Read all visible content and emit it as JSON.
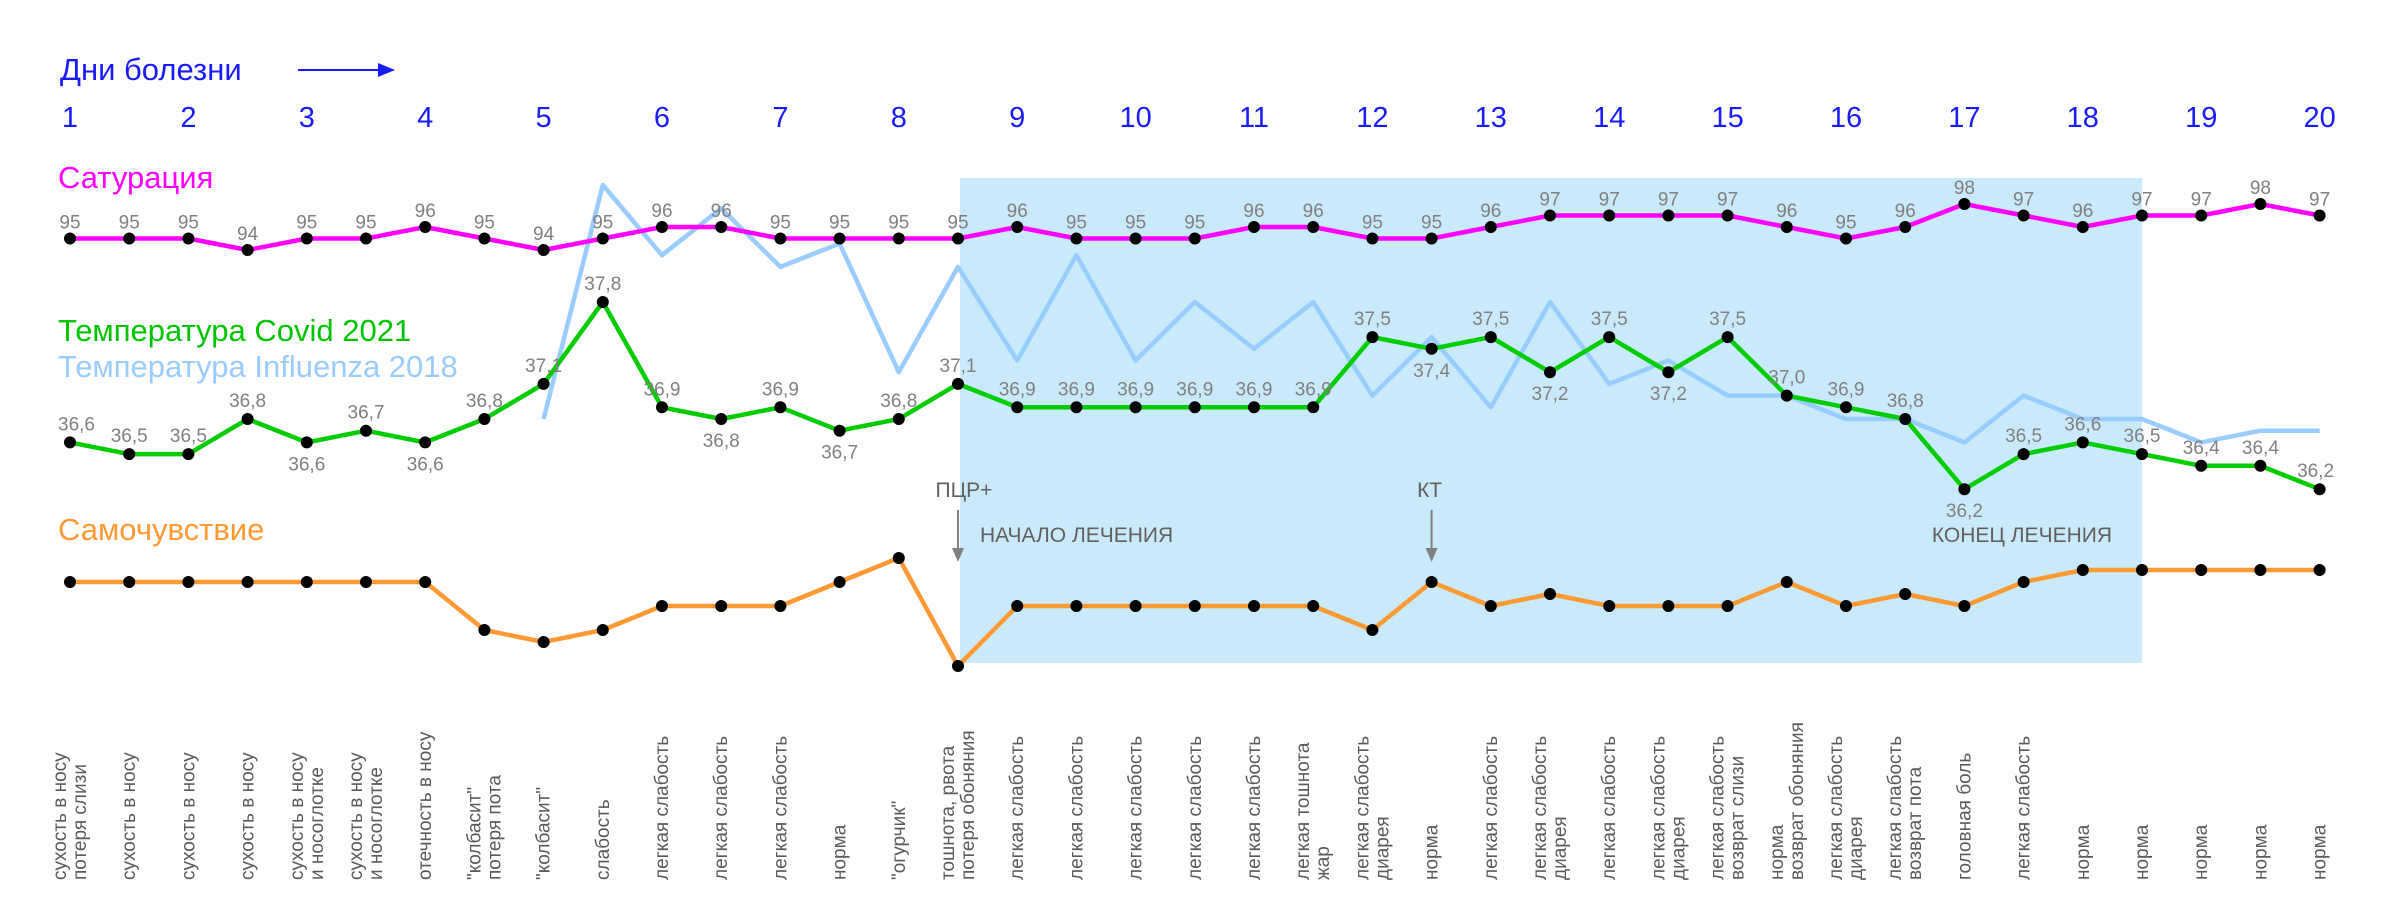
{
  "header": {
    "days_label": "Дни  болезни"
  },
  "colors": {
    "saturation": "#ff00ff",
    "covid": "#00cc00",
    "influenza": "#99ccff",
    "wellbeing": "#ff9933",
    "treatment_band": "#c9eafb",
    "day_numbers": "#0000ff",
    "markers": "#000000"
  },
  "chart_data": {
    "type": "line",
    "days": [
      "1",
      "2",
      "3",
      "4",
      "5",
      "6",
      "7",
      "8",
      "9",
      "10",
      "11",
      "12",
      "13",
      "14",
      "15",
      "16",
      "17",
      "18",
      "19",
      "20"
    ],
    "x": [
      1,
      1.5,
      2,
      2.5,
      3,
      3.5,
      4,
      4.5,
      5,
      5.5,
      6,
      6.5,
      7,
      7.5,
      8,
      8.5,
      9,
      9.5,
      10,
      10.5,
      11,
      11.5,
      12,
      12.5,
      13,
      13.5,
      14,
      14.5,
      15,
      15.5,
      16,
      16.5,
      17,
      17.5,
      18,
      18.5,
      19,
      19.5,
      20
    ],
    "series": [
      {
        "name": "Сатурация",
        "key": "saturation",
        "values": [
          95,
          95,
          95,
          94,
          95,
          95,
          96,
          95,
          94,
          95,
          96,
          96,
          95,
          95,
          95,
          95,
          96,
          95,
          95,
          95,
          96,
          96,
          95,
          95,
          96,
          97,
          97,
          97,
          97,
          96,
          95,
          96,
          98,
          97,
          96,
          97,
          97,
          98,
          97
        ],
        "labels": [
          "95",
          "95",
          "95",
          "94",
          "95",
          "95",
          "96",
          "95",
          "94",
          "95",
          "96",
          "96",
          "95",
          "95",
          "95",
          "95",
          "96",
          "95",
          "95",
          "95",
          "96",
          "96",
          "95",
          "95",
          "96",
          "97",
          "97",
          "97",
          "97",
          "96",
          "95",
          "96",
          "98",
          "97",
          "96",
          "97",
          "97",
          "98",
          "97"
        ]
      },
      {
        "name": "Температура Covid 2021",
        "key": "covid",
        "values": [
          36.6,
          36.5,
          36.5,
          36.8,
          36.6,
          36.7,
          36.6,
          36.8,
          37.1,
          37.8,
          36.9,
          36.8,
          36.9,
          36.7,
          36.8,
          37.1,
          36.9,
          36.9,
          36.9,
          36.9,
          36.9,
          36.9,
          37.5,
          37.4,
          37.5,
          37.2,
          37.5,
          37.2,
          37.5,
          37.0,
          36.9,
          36.8,
          36.2,
          36.5,
          36.6,
          36.5,
          36.4,
          36.4,
          36.2
        ],
        "labels": [
          "36,6",
          "36,5",
          "36,5",
          "36,8",
          "36,6",
          "36,7",
          "36,6",
          "36,8",
          "37,1",
          "37,8",
          "36,9",
          "36,8",
          "36,9",
          "36,7",
          "36,8",
          "37,1",
          "36,9",
          "36,9",
          "36,9",
          "36,9",
          "36,9",
          "36,9",
          "37,5",
          "37,4",
          "37,5",
          "37,2",
          "37,5",
          "37,2",
          "37,5",
          "37,0",
          "36,9",
          "36,8",
          "36,2",
          "36,5",
          "36,6",
          "36,5",
          "36,4",
          "36,4",
          "36,2"
        ]
      },
      {
        "name": "Температура Influenza 2018",
        "key": "influenza",
        "x": [
          5,
          5.5,
          6,
          6.5,
          7,
          7.5,
          8,
          8.5,
          9,
          9.5,
          10,
          10.5,
          11,
          11.5,
          12,
          12.5,
          13,
          13.5,
          14,
          14.5,
          15,
          15.5,
          16,
          16.5,
          17,
          17.5,
          18,
          18.5,
          19,
          19.5,
          20
        ],
        "values": [
          36.8,
          38.8,
          38.2,
          38.6,
          38.1,
          38.3,
          37.2,
          38.1,
          37.3,
          38.2,
          37.3,
          37.8,
          37.4,
          37.8,
          37.0,
          37.5,
          36.9,
          37.8,
          37.1,
          37.3,
          37.0,
          37.0,
          36.8,
          36.8,
          36.6,
          37.0,
          36.8,
          36.8,
          36.6,
          36.7,
          36.7
        ]
      },
      {
        "name": "Самочувствие",
        "key": "wellbeing",
        "values": [
          0,
          0,
          0,
          0,
          0,
          0,
          0,
          -2,
          -2.5,
          -2,
          -1,
          -1,
          -1,
          0,
          1,
          -3.5,
          -1,
          -1,
          -1,
          -1,
          -1,
          -1,
          -2,
          0,
          -1,
          -0.5,
          -1,
          -1,
          -1,
          0,
          -1,
          -0.5,
          -1,
          0,
          0.5,
          0.5,
          0.5,
          0.5,
          0.5
        ]
      }
    ],
    "symptoms": [
      "сухость в носу\nпотеря слизи",
      "сухость в носу",
      "сухость в носу",
      "сухость в носу",
      "сухость в носу\nи носоглотке",
      "сухость в носу\nи носоглотке",
      "отечность в носу",
      "\"колбасит\"\nпотеря пота",
      "\"колбасит\"",
      "слабость",
      "легкая слабость",
      "легкая слабость",
      "легкая слабость",
      "норма",
      "\"огурчик\"",
      "тошнота, рвота\nпотеря обоняния",
      "легкая слабость",
      "легкая слабость",
      "легкая слабость",
      "легкая слабость",
      "легкая слабость",
      "легкая тошнота\nжар",
      "легкая слабость\nдиарея",
      "норма",
      "легкая слабость",
      "легкая слабость\nдиарея",
      "легкая слабость",
      "легкая слабость\nдиарея",
      "легкая слабость\nвозврат слизи",
      "норма\nвозврат обоняния",
      "легкая слабость\nдиарея",
      "легкая слабость\nвозврат пота",
      "головная боль",
      "легкая слабость",
      "норма",
      "норма",
      "норма",
      "норма",
      "норма"
    ],
    "annotations": {
      "pcr": "ПЦР+",
      "ct": "КТ",
      "treatment_start": "НАЧАЛО ЛЕЧЕНИЯ",
      "treatment_end": "КОНЕЦ ЛЕЧЕНИЯ"
    },
    "treatment_period": [
      8.5,
      18.5
    ],
    "grid": false
  }
}
